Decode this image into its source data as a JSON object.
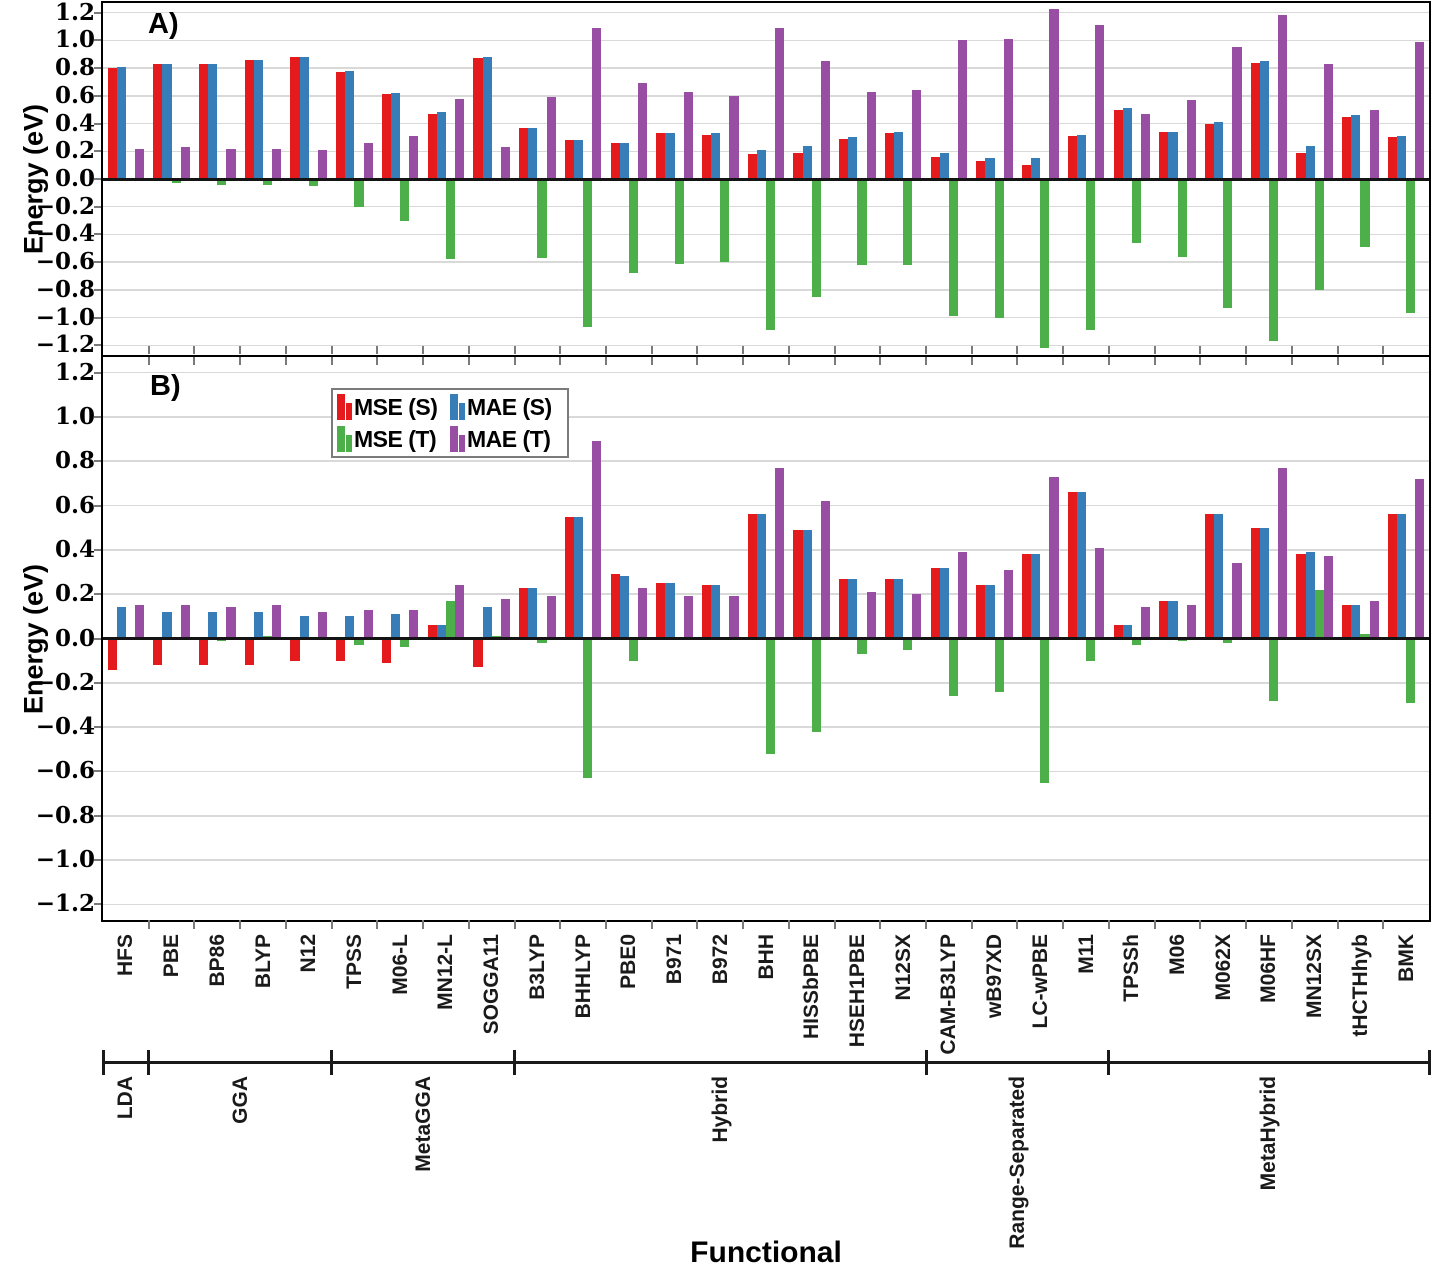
{
  "figure": {
    "y_axis_label": "Energy (eV)",
    "x_axis_label": "Functional"
  },
  "legend": {
    "items": [
      {
        "label": "MSE (S)",
        "color": "#e41a1c"
      },
      {
        "label": "MAE (S)",
        "color": "#377eb8"
      },
      {
        "label": "MSE (T)",
        "color": "#4daf4a"
      },
      {
        "label": "MAE (T)",
        "color": "#984ea3"
      }
    ]
  },
  "chart_data": {
    "type": "bar",
    "title": "",
    "xlabel": "Functional",
    "ylabel": "Energy (eV)",
    "ylim": [
      -1.27,
      1.27
    ],
    "grid": true,
    "y_tick_values": [
      1.2,
      1.0,
      0.8,
      0.6,
      0.4,
      0.2,
      0.0,
      -0.2,
      -0.4,
      -0.6,
      -0.8,
      -1.0,
      -1.2
    ],
    "y_tick_labels": [
      "1.2",
      "1.0",
      "0.8",
      "0.6",
      "0.4",
      "0.2",
      "0.0",
      "−0.2",
      "−0.4",
      "−0.6",
      "−0.8",
      "−1.0",
      "−1.2"
    ],
    "categories": [
      "HFS",
      "PBE",
      "BP86",
      "BLYP",
      "N12",
      "TPSS",
      "M06-L",
      "MN12-L",
      "SOGGA11",
      "B3LYP",
      "BHHLYP",
      "PBE0",
      "B971",
      "B972",
      "BHH",
      "HISSbPBE",
      "HSEH1PBE",
      "N12SX",
      "CAM-B3LYP",
      "wB97XD",
      "LC-wPBE",
      "M11",
      "TPSSh",
      "M06",
      "M062X",
      "M06HF",
      "MN12SX",
      "tHCTHhyb",
      "BMK"
    ],
    "groups": [
      {
        "label": "LDA",
        "count": 1
      },
      {
        "label": "GGA",
        "count": 4
      },
      {
        "label": "MetaGGA",
        "count": 4
      },
      {
        "label": "Hybrid",
        "count": 9
      },
      {
        "label": "Range-Separated",
        "count": 4
      },
      {
        "label": "MetaHybrid",
        "count": 7
      }
    ],
    "panels": [
      {
        "id": "A",
        "label": "A)",
        "series": [
          {
            "name": "MSE (S)",
            "color": "#e41a1c",
            "values": [
              0.8,
              0.83,
              0.83,
              0.86,
              0.88,
              0.77,
              0.61,
              0.47,
              0.87,
              0.37,
              0.28,
              0.26,
              0.33,
              0.32,
              0.18,
              0.19,
              0.29,
              0.33,
              0.16,
              0.13,
              0.1,
              0.31,
              0.5,
              0.34,
              0.4,
              0.84,
              0.19,
              0.45,
              0.3
            ]
          },
          {
            "name": "MAE (S)",
            "color": "#377eb8",
            "values": [
              0.81,
              0.83,
              0.83,
              0.86,
              0.88,
              0.78,
              0.62,
              0.48,
              0.88,
              0.37,
              0.28,
              0.26,
              0.33,
              0.33,
              0.21,
              0.24,
              0.3,
              0.34,
              0.19,
              0.15,
              0.15,
              0.32,
              0.51,
              0.34,
              0.41,
              0.85,
              0.24,
              0.46,
              0.31
            ]
          },
          {
            "name": "MSE (T)",
            "color": "#4daf4a",
            "values": [
              0.0,
              -0.03,
              -0.04,
              -0.04,
              -0.05,
              -0.2,
              -0.3,
              -0.58,
              0.01,
              -0.57,
              -1.07,
              -0.68,
              -0.61,
              -0.6,
              -1.09,
              -0.85,
              -0.62,
              -0.62,
              -0.99,
              -1.0,
              -1.22,
              -1.09,
              -0.46,
              -0.56,
              -0.93,
              -1.17,
              -0.8,
              -0.49,
              -0.97
            ]
          },
          {
            "name": "MAE (T)",
            "color": "#984ea3",
            "values": [
              0.22,
              0.23,
              0.22,
              0.22,
              0.21,
              0.26,
              0.31,
              0.58,
              0.23,
              0.59,
              1.09,
              0.69,
              0.63,
              0.6,
              1.09,
              0.85,
              0.63,
              0.64,
              1.0,
              1.01,
              1.23,
              1.11,
              0.47,
              0.57,
              0.95,
              1.18,
              0.83,
              0.5,
              0.99
            ]
          }
        ]
      },
      {
        "id": "B",
        "label": "B)",
        "series": [
          {
            "name": "MSE (S)",
            "color": "#e41a1c",
            "values": [
              -0.14,
              -0.12,
              -0.12,
              -0.12,
              -0.1,
              -0.1,
              -0.11,
              0.06,
              -0.13,
              0.23,
              0.55,
              0.29,
              0.25,
              0.24,
              0.56,
              0.49,
              0.27,
              0.27,
              0.32,
              0.24,
              0.38,
              0.66,
              0.06,
              0.17,
              0.56,
              0.5,
              0.38,
              0.15,
              0.56
            ]
          },
          {
            "name": "MAE (S)",
            "color": "#377eb8",
            "values": [
              0.14,
              0.12,
              0.12,
              0.12,
              0.1,
              0.1,
              0.11,
              0.06,
              0.14,
              0.23,
              0.55,
              0.28,
              0.25,
              0.24,
              0.56,
              0.49,
              0.27,
              0.27,
              0.32,
              0.24,
              0.38,
              0.66,
              0.06,
              0.17,
              0.56,
              0.5,
              0.39,
              0.15,
              0.56
            ]
          },
          {
            "name": "MSE (T)",
            "color": "#4daf4a",
            "values": [
              0.0,
              0.0,
              -0.01,
              0.01,
              0.0,
              -0.03,
              -0.04,
              0.17,
              0.01,
              -0.02,
              -0.63,
              -0.1,
              0.0,
              0.0,
              -0.52,
              -0.42,
              -0.07,
              -0.05,
              -0.26,
              -0.24,
              -0.65,
              -0.1,
              -0.03,
              -0.01,
              -0.02,
              -0.28,
              0.22,
              0.02,
              -0.29
            ]
          },
          {
            "name": "MAE (T)",
            "color": "#984ea3",
            "values": [
              0.15,
              0.15,
              0.14,
              0.15,
              0.12,
              0.13,
              0.13,
              0.24,
              0.18,
              0.19,
              0.89,
              0.23,
              0.19,
              0.19,
              0.77,
              0.62,
              0.21,
              0.2,
              0.39,
              0.31,
              0.73,
              0.41,
              0.14,
              0.15,
              0.34,
              0.77,
              0.37,
              0.17,
              0.72
            ]
          }
        ]
      }
    ]
  }
}
